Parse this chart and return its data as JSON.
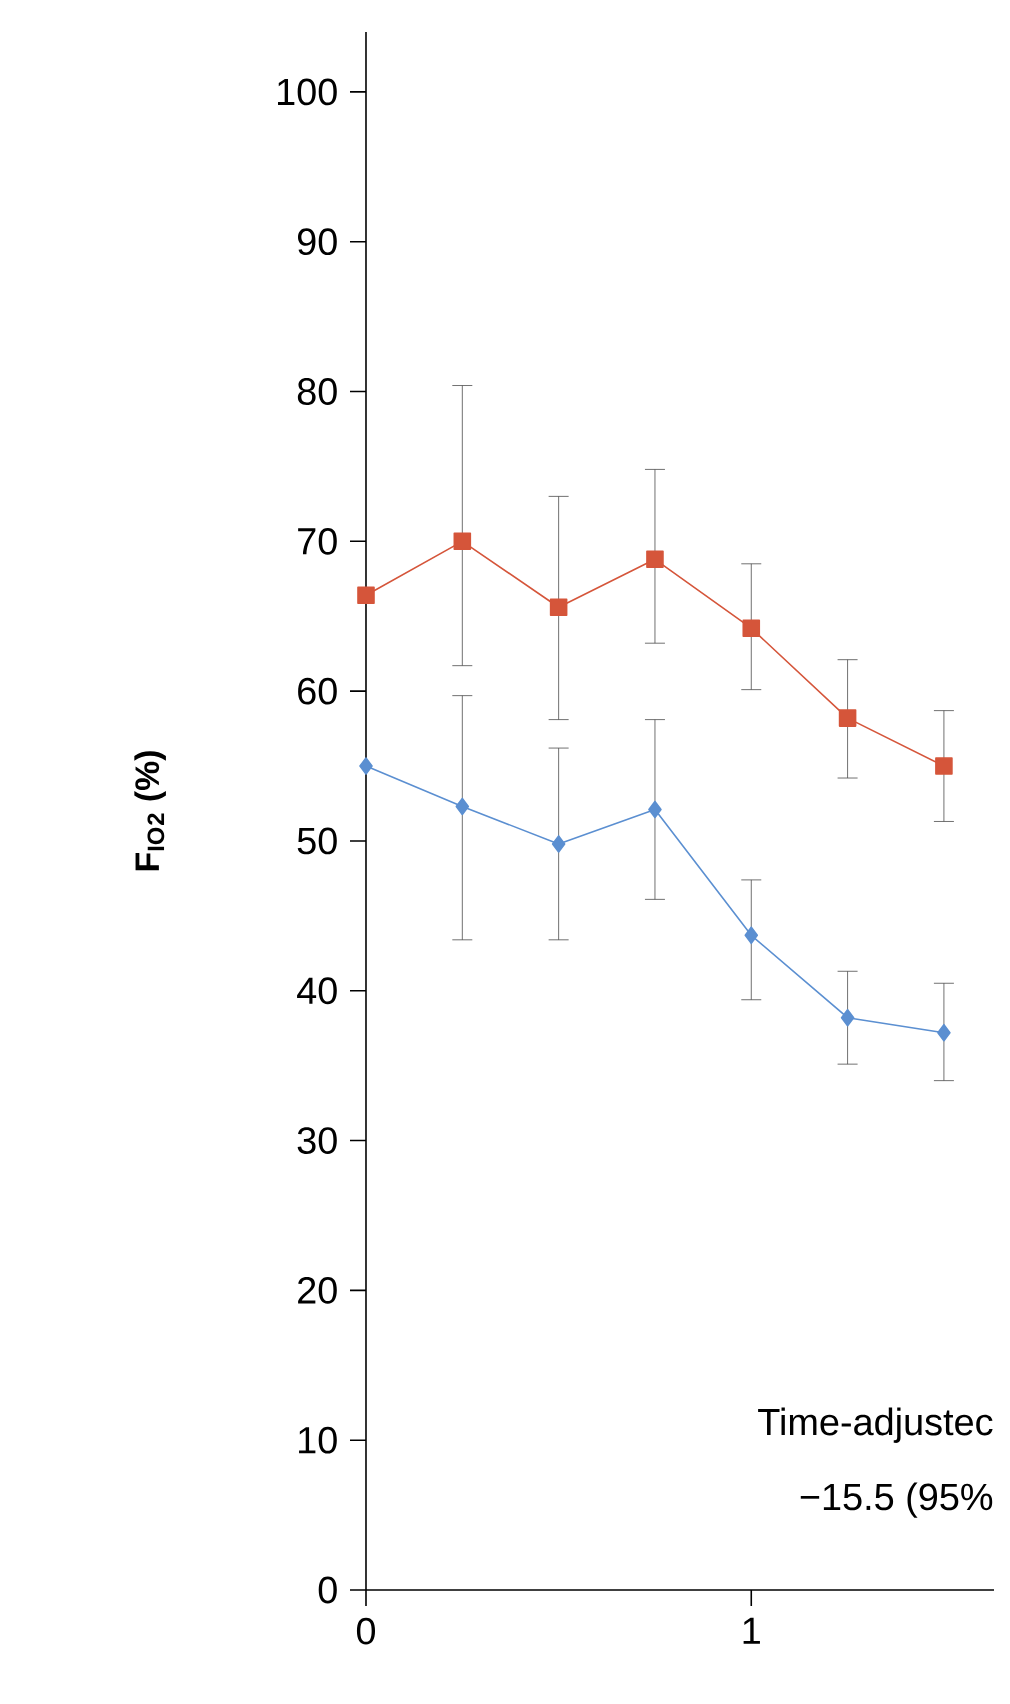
{
  "chart_data": {
    "type": "line",
    "ylabel": "F$_{IO}$$_{2}$ (%)",
    "x": [
      0,
      0.25,
      0.5,
      0.75,
      1,
      1.25,
      1.5
    ],
    "series": [
      {
        "color": "#d5553a",
        "marker": "square",
        "values": [
          66.4,
          70.0,
          65.6,
          68.8,
          64.2,
          58.2,
          55.0
        ],
        "errors": [
          null,
          [
            61.7,
            80.4
          ],
          [
            58.1,
            73.0
          ],
          [
            63.2,
            74.8
          ],
          [
            60.1,
            68.5
          ],
          [
            54.2,
            62.1
          ],
          [
            51.3,
            58.7
          ]
        ]
      },
      {
        "color": "#5b8fd1",
        "marker": "diamond",
        "values": [
          55.0,
          52.3,
          49.8,
          52.1,
          43.7,
          38.2,
          37.2
        ],
        "errors": [
          null,
          [
            43.4,
            59.7
          ],
          [
            43.4,
            56.2
          ],
          [
            46.1,
            58.1
          ],
          [
            39.4,
            47.4
          ],
          [
            35.1,
            41.3
          ],
          [
            34.0,
            40.5
          ]
        ]
      }
    ],
    "xlim": [
      0,
      1.63
    ],
    "ylim": [
      0,
      104
    ],
    "xticks": [
      0,
      1
    ],
    "yticks": [
      0,
      10,
      20,
      30,
      40,
      50,
      60,
      70,
      80,
      90,
      100
    ],
    "annotations": [
      "Time-adjustec",
      "−15.5 (95%"
    ]
  }
}
